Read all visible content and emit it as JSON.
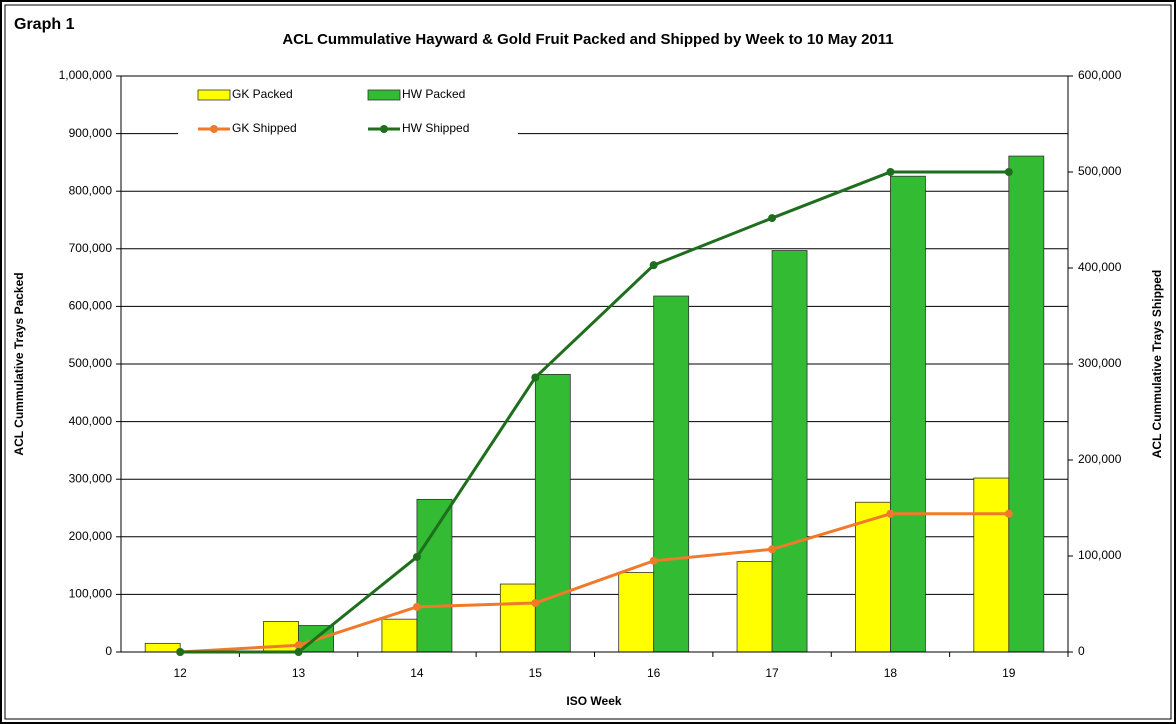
{
  "chart_data": {
    "type": "bar",
    "figure_label": "Graph 1",
    "title": "ACL Cummulative Hayward & Gold Fruit Packed and Shipped by Week to 10 May 2011",
    "x_label": "ISO Week",
    "y_label": "ACL Cummulative Trays Packed",
    "y2_label": "ACL Cummulative Trays Shipped",
    "categories": [
      "12",
      "13",
      "14",
      "15",
      "16",
      "17",
      "18",
      "19"
    ],
    "series": [
      {
        "name": "GK Packed",
        "type": "bar",
        "color": "#ffff00",
        "values": [
          15000,
          53000,
          57000,
          118000,
          138000,
          157000,
          260000,
          302000
        ]
      },
      {
        "name": "HW Packed",
        "type": "bar",
        "color": "#33bb33",
        "values": [
          0,
          46000,
          265000,
          482000,
          618000,
          697000,
          826000,
          861000
        ]
      },
      {
        "name": "GK Shipped",
        "type": "line",
        "axis": "y2",
        "color": "#f07a2a",
        "values": [
          0,
          7000,
          47000,
          51000,
          95000,
          107000,
          144000,
          144000
        ]
      },
      {
        "name": "HW Shipped",
        "type": "line",
        "axis": "y2",
        "color": "#1e6e1e",
        "values": [
          0,
          0,
          99000,
          286000,
          403000,
          452000,
          500000,
          500000
        ]
      }
    ],
    "ylim": [
      0,
      1000000
    ],
    "yticks": [
      0,
      {
        "value": 100000,
        "label": "100,000"
      },
      {
        "value": 200000,
        "label": "200,000"
      },
      {
        "value": 300000,
        "label": "300,000"
      },
      {
        "value": 400000,
        "label": "400,000"
      },
      {
        "value": 500000,
        "label": "500,000"
      },
      {
        "value": 600000,
        "label": "600,000"
      },
      {
        "value": 700000,
        "label": "700,000"
      },
      {
        "value": 800000,
        "label": "800,000"
      },
      {
        "value": 900000,
        "label": "900,000"
      },
      {
        "value": 1000000,
        "label": "1,000,000"
      }
    ],
    "y2lim": [
      0,
      600000
    ],
    "y2ticks": [
      0,
      {
        "value": 100000,
        "label": "100,000"
      },
      {
        "value": 200000,
        "label": "200,000"
      },
      {
        "value": 300000,
        "label": "300,000"
      },
      {
        "value": 400000,
        "label": "400,000"
      },
      {
        "value": 500000,
        "label": "500,000"
      },
      {
        "value": 600000,
        "label": "600,000"
      }
    ],
    "grid": true
  }
}
